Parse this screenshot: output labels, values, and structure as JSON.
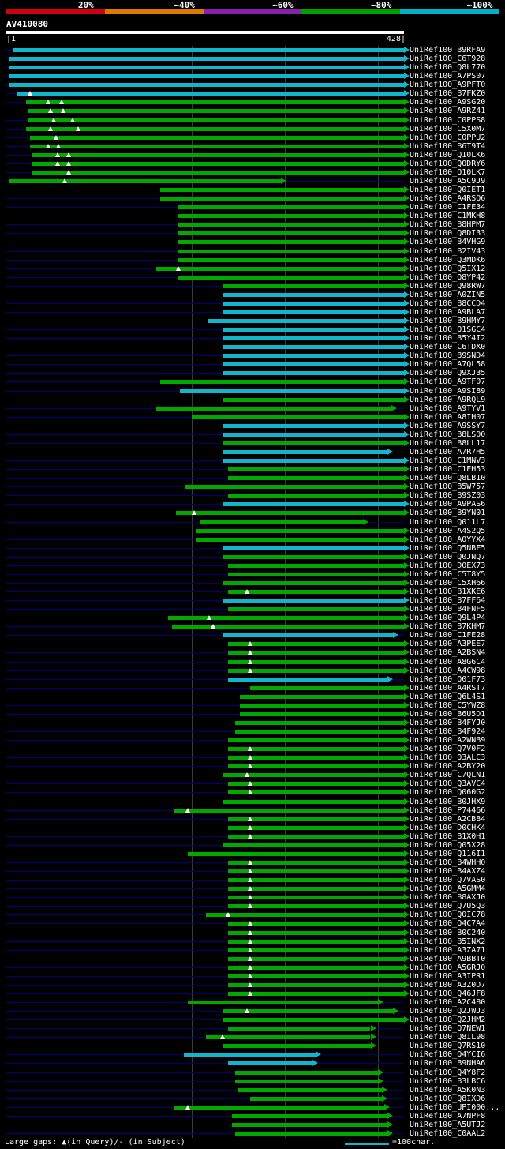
{
  "identity_key": {
    "segments": [
      {
        "label": "20%",
        "color": "#cc0012"
      },
      {
        "label": "~40%",
        "color": "#dd7700"
      },
      {
        "label": "~60%",
        "color": "#8a1fae"
      },
      {
        "label": "~80%",
        "color": "#00a000"
      },
      {
        "label": "~100%",
        "color": "#00b2c8"
      }
    ]
  },
  "query": {
    "name": "AV410080",
    "start_tick": "|1",
    "end_tick": "428|",
    "length": 428
  },
  "plot": {
    "bar_colors": {
      "green": "#00a800",
      "cyan": "#10b6cc"
    },
    "row_line_color": "#000078",
    "grid_color": "#3a3a3a",
    "gap_marker_color": "#ffffff",
    "query_bar_color": "#ffffff"
  },
  "footer": {
    "legend": "Large gaps: ▲(in Query)/- (in Subject)",
    "scale_label": "=100char.",
    "scale_color": "#10b6cc"
  },
  "chart_data": {
    "type": "bar",
    "subtype": "horizontal-alignment-spans",
    "title": "AV410080",
    "xlim": [
      1,
      428
    ],
    "gridlines_every": 100,
    "legend_bins": [
      "20%",
      "~40%",
      "~60%",
      "~80%",
      "~100%"
    ],
    "hits": [
      {
        "label": "UniRef100_B9RFA9",
        "color": "cyan",
        "start": 9,
        "end": 428,
        "gaps": []
      },
      {
        "label": "UniRef100_C6T928",
        "color": "cyan",
        "start": 4,
        "end": 428,
        "gaps": []
      },
      {
        "label": "UniRef100_Q8L770",
        "color": "cyan",
        "start": 4,
        "end": 428,
        "gaps": []
      },
      {
        "label": "UniRef100_A7PS07",
        "color": "cyan",
        "start": 4,
        "end": 428,
        "gaps": []
      },
      {
        "label": "UniRef100_A9PFT0",
        "color": "cyan",
        "start": 4,
        "end": 428,
        "gaps": []
      },
      {
        "label": "UniRef100_B7FKZ0",
        "color": "cyan",
        "start": 12,
        "end": 428,
        "gaps": [
          26
        ]
      },
      {
        "label": "UniRef100_A9SG20",
        "color": "green",
        "start": 22,
        "end": 428,
        "gaps": [
          46,
          60
        ]
      },
      {
        "label": "UniRef100_A9RZ41",
        "color": "green",
        "start": 24,
        "end": 428,
        "gaps": [
          48,
          62
        ]
      },
      {
        "label": "UniRef100_C0PPS8",
        "color": "green",
        "start": 24,
        "end": 428,
        "gaps": [
          52,
          72
        ]
      },
      {
        "label": "UniRef100_C5X0M7",
        "color": "green",
        "start": 22,
        "end": 428,
        "gaps": [
          48,
          78
        ]
      },
      {
        "label": "UniRef100_C0PPU2",
        "color": "green",
        "start": 26,
        "end": 428,
        "gaps": [
          54
        ]
      },
      {
        "label": "UniRef100_B6T9T4",
        "color": "green",
        "start": 26,
        "end": 428,
        "gaps": [
          46,
          57
        ]
      },
      {
        "label": "UniRef100_Q10LK6",
        "color": "green",
        "start": 28,
        "end": 428,
        "gaps": [
          56,
          68
        ]
      },
      {
        "label": "UniRef100_Q0DRY6",
        "color": "green",
        "start": 28,
        "end": 428,
        "gaps": [
          56,
          68
        ]
      },
      {
        "label": "UniRef100_Q10LK7",
        "color": "green",
        "start": 28,
        "end": 428,
        "gaps": [
          68
        ]
      },
      {
        "label": "UniRef100_A5C9J9",
        "color": "green",
        "start": 4,
        "end": 296,
        "gaps": [
          64
        ]
      },
      {
        "label": "UniRef100_Q0IET1",
        "color": "green",
        "start": 166,
        "end": 428,
        "gaps": []
      },
      {
        "label": "UniRef100_A4RSQ6",
        "color": "green",
        "start": 166,
        "end": 428,
        "gaps": []
      },
      {
        "label": "UniRef100_C1FE34",
        "color": "green",
        "start": 186,
        "end": 428,
        "gaps": []
      },
      {
        "label": "UniRef100_C1MKH8",
        "color": "green",
        "start": 186,
        "end": 428,
        "gaps": []
      },
      {
        "label": "UniRef100_B8HPM7",
        "color": "green",
        "start": 186,
        "end": 428,
        "gaps": []
      },
      {
        "label": "UniRef100_Q8DI33",
        "color": "green",
        "start": 186,
        "end": 428,
        "gaps": []
      },
      {
        "label": "UniRef100_B4VHG9",
        "color": "green",
        "start": 186,
        "end": 428,
        "gaps": []
      },
      {
        "label": "UniRef100_B2IV43",
        "color": "green",
        "start": 186,
        "end": 428,
        "gaps": []
      },
      {
        "label": "UniRef100_Q3MDK6",
        "color": "green",
        "start": 186,
        "end": 428,
        "gaps": []
      },
      {
        "label": "UniRef100_Q5IX12",
        "color": "green",
        "start": 162,
        "end": 428,
        "gaps": [
          186
        ]
      },
      {
        "label": "UniRef100_Q8YP42",
        "color": "green",
        "start": 186,
        "end": 428,
        "gaps": []
      },
      {
        "label": "UniRef100_Q98RW7",
        "color": "green",
        "start": 234,
        "end": 428,
        "gaps": []
      },
      {
        "label": "UniRef100_A0ZIN5",
        "color": "cyan",
        "start": 234,
        "end": 428,
        "gaps": []
      },
      {
        "label": "UniRef100_B8CCD4",
        "color": "cyan",
        "start": 234,
        "end": 428,
        "gaps": []
      },
      {
        "label": "UniRef100_A9BLA7",
        "color": "cyan",
        "start": 234,
        "end": 428,
        "gaps": []
      },
      {
        "label": "UniRef100_B9HMY7",
        "color": "cyan",
        "start": 217,
        "end": 428,
        "gaps": []
      },
      {
        "label": "UniRef100_Q1SGC4",
        "color": "cyan",
        "start": 234,
        "end": 428,
        "gaps": []
      },
      {
        "label": "UniRef100_B5Y4I2",
        "color": "cyan",
        "start": 234,
        "end": 428,
        "gaps": []
      },
      {
        "label": "UniRef100_C6TDX0",
        "color": "cyan",
        "start": 234,
        "end": 428,
        "gaps": []
      },
      {
        "label": "UniRef100_B9SND4",
        "color": "cyan",
        "start": 234,
        "end": 428,
        "gaps": []
      },
      {
        "label": "UniRef100_A7QL58",
        "color": "cyan",
        "start": 234,
        "end": 428,
        "gaps": []
      },
      {
        "label": "UniRef100_Q9XJ35",
        "color": "cyan",
        "start": 234,
        "end": 428,
        "gaps": []
      },
      {
        "label": "UniRef100_A9TF07",
        "color": "green",
        "start": 166,
        "end": 428,
        "gaps": []
      },
      {
        "label": "UniRef100_A9SI89",
        "color": "cyan",
        "start": 187,
        "end": 428,
        "gaps": []
      },
      {
        "label": "UniRef100_A9RQL9",
        "color": "green",
        "start": 234,
        "end": 428,
        "gaps": []
      },
      {
        "label": "UniRef100_A9TYV1",
        "color": "green",
        "start": 162,
        "end": 414,
        "gaps": []
      },
      {
        "label": "UniRef100_A8IH07",
        "color": "green",
        "start": 200,
        "end": 428,
        "gaps": []
      },
      {
        "label": "UniRef100_A9SSY7",
        "color": "cyan",
        "start": 234,
        "end": 428,
        "gaps": []
      },
      {
        "label": "UniRef100_B8LS00",
        "color": "cyan",
        "start": 234,
        "end": 428,
        "gaps": []
      },
      {
        "label": "UniRef100_B8LL17",
        "color": "green",
        "start": 234,
        "end": 428,
        "gaps": []
      },
      {
        "label": "UniRef100_A7R7H5",
        "color": "cyan",
        "start": 234,
        "end": 410,
        "gaps": []
      },
      {
        "label": "UniRef100_C1MNV3",
        "color": "cyan",
        "start": 234,
        "end": 428,
        "gaps": []
      },
      {
        "label": "UniRef100_C1EH53",
        "color": "green",
        "start": 239,
        "end": 428,
        "gaps": []
      },
      {
        "label": "UniRef100_Q8LB10",
        "color": "green",
        "start": 239,
        "end": 428,
        "gaps": []
      },
      {
        "label": "UniRef100_B5W757",
        "color": "green",
        "start": 193,
        "end": 428,
        "gaps": []
      },
      {
        "label": "UniRef100_B9SZ03",
        "color": "green",
        "start": 239,
        "end": 428,
        "gaps": []
      },
      {
        "label": "UniRef100_A9PAS6",
        "color": "cyan",
        "start": 234,
        "end": 428,
        "gaps": []
      },
      {
        "label": "UniRef100_B9YN01",
        "color": "green",
        "start": 183,
        "end": 428,
        "gaps": [
          203
        ]
      },
      {
        "label": "UniRef100_Q011L7",
        "color": "green",
        "start": 209,
        "end": 384,
        "gaps": []
      },
      {
        "label": "UniRef100_A4S2Q5",
        "color": "green",
        "start": 204,
        "end": 428,
        "gaps": []
      },
      {
        "label": "UniRef100_A0YYX4",
        "color": "green",
        "start": 204,
        "end": 428,
        "gaps": []
      },
      {
        "label": "UniRef100_Q5NBF5",
        "color": "cyan",
        "start": 234,
        "end": 428,
        "gaps": []
      },
      {
        "label": "UniRef100_Q0JNQ7",
        "color": "green",
        "start": 234,
        "end": 428,
        "gaps": []
      },
      {
        "label": "UniRef100_D0EX73",
        "color": "green",
        "start": 239,
        "end": 428,
        "gaps": []
      },
      {
        "label": "UniRef100_C5T8Y5",
        "color": "green",
        "start": 239,
        "end": 428,
        "gaps": []
      },
      {
        "label": "UniRef100_C5XH66",
        "color": "green",
        "start": 234,
        "end": 428,
        "gaps": []
      },
      {
        "label": "UniRef100_B1XKE6",
        "color": "green",
        "start": 239,
        "end": 428,
        "gaps": [
          259
        ]
      },
      {
        "label": "UniRef100_B7FF64",
        "color": "cyan",
        "start": 234,
        "end": 428,
        "gaps": []
      },
      {
        "label": "UniRef100_B4FNF5",
        "color": "green",
        "start": 239,
        "end": 428,
        "gaps": []
      },
      {
        "label": "UniRef100_Q9L4P4",
        "color": "green",
        "start": 175,
        "end": 428,
        "gaps": [
          219
        ]
      },
      {
        "label": "UniRef100_B7KHM7",
        "color": "green",
        "start": 179,
        "end": 428,
        "gaps": [
          223
        ]
      },
      {
        "label": "UniRef100_C1FE28",
        "color": "cyan",
        "start": 234,
        "end": 416,
        "gaps": []
      },
      {
        "label": "UniRef100_A3PEE7",
        "color": "green",
        "start": 239,
        "end": 428,
        "gaps": [
          263
        ]
      },
      {
        "label": "UniRef100_A2BSN4",
        "color": "green",
        "start": 239,
        "end": 428,
        "gaps": [
          263
        ]
      },
      {
        "label": "UniRef100_A8G6C4",
        "color": "green",
        "start": 239,
        "end": 428,
        "gaps": [
          263
        ]
      },
      {
        "label": "UniRef100_A4CW98",
        "color": "green",
        "start": 239,
        "end": 428,
        "gaps": [
          263
        ]
      },
      {
        "label": "UniRef100_Q01F73",
        "color": "cyan",
        "start": 239,
        "end": 410,
        "gaps": []
      },
      {
        "label": "UniRef100_A4RST7",
        "color": "green",
        "start": 263,
        "end": 428,
        "gaps": []
      },
      {
        "label": "UniRef100_Q6L4S1",
        "color": "green",
        "start": 252,
        "end": 428,
        "gaps": []
      },
      {
        "label": "UniRef100_C5YWZ8",
        "color": "green",
        "start": 252,
        "end": 428,
        "gaps": []
      },
      {
        "label": "UniRef100_B6U5D1",
        "color": "green",
        "start": 252,
        "end": 428,
        "gaps": []
      },
      {
        "label": "UniRef100_B4FYJ0",
        "color": "green",
        "start": 247,
        "end": 428,
        "gaps": []
      },
      {
        "label": "UniRef100_B4F924",
        "color": "green",
        "start": 247,
        "end": 428,
        "gaps": []
      },
      {
        "label": "UniRef100_A2WNB9",
        "color": "green",
        "start": 239,
        "end": 428,
        "gaps": []
      },
      {
        "label": "UniRef100_Q7V0F2",
        "color": "green",
        "start": 239,
        "end": 428,
        "gaps": [
          263
        ]
      },
      {
        "label": "UniRef100_Q3ALC3",
        "color": "green",
        "start": 239,
        "end": 428,
        "gaps": [
          263
        ]
      },
      {
        "label": "UniRef100_A2BY20",
        "color": "green",
        "start": 239,
        "end": 428,
        "gaps": [
          263
        ]
      },
      {
        "label": "UniRef100_C7QLN1",
        "color": "green",
        "start": 234,
        "end": 428,
        "gaps": [
          259
        ]
      },
      {
        "label": "UniRef100_Q3AVC4",
        "color": "green",
        "start": 239,
        "end": 428,
        "gaps": [
          263
        ]
      },
      {
        "label": "UniRef100_Q060G2",
        "color": "green",
        "start": 239,
        "end": 428,
        "gaps": [
          263
        ]
      },
      {
        "label": "UniRef100_B0JHX9",
        "color": "green",
        "start": 234,
        "end": 428,
        "gaps": []
      },
      {
        "label": "UniRef100_P74466",
        "color": "green",
        "start": 181,
        "end": 428,
        "gaps": [
          196
        ]
      },
      {
        "label": "UniRef100_A2CB84",
        "color": "green",
        "start": 239,
        "end": 428,
        "gaps": [
          263
        ]
      },
      {
        "label": "UniRef100_D0CHK4",
        "color": "green",
        "start": 239,
        "end": 428,
        "gaps": [
          263
        ]
      },
      {
        "label": "UniRef100_B1X0H1",
        "color": "green",
        "start": 239,
        "end": 428,
        "gaps": [
          263
        ]
      },
      {
        "label": "UniRef100_Q05X28",
        "color": "green",
        "start": 234,
        "end": 428,
        "gaps": []
      },
      {
        "label": "UniRef100_Q116I1",
        "color": "green",
        "start": 196,
        "end": 428,
        "gaps": []
      },
      {
        "label": "UniRef100_B4WHH0",
        "color": "green",
        "start": 239,
        "end": 428,
        "gaps": [
          263
        ]
      },
      {
        "label": "UniRef100_B4AXZ4",
        "color": "green",
        "start": 239,
        "end": 428,
        "gaps": [
          263
        ]
      },
      {
        "label": "UniRef100_Q7VAS0",
        "color": "green",
        "start": 239,
        "end": 428,
        "gaps": [
          263
        ]
      },
      {
        "label": "UniRef100_A5GMM4",
        "color": "green",
        "start": 239,
        "end": 428,
        "gaps": [
          263
        ]
      },
      {
        "label": "UniRef100_B8AXJ0",
        "color": "green",
        "start": 239,
        "end": 428,
        "gaps": [
          263
        ]
      },
      {
        "label": "UniRef100_Q7U5Q3",
        "color": "green",
        "start": 239,
        "end": 428,
        "gaps": [
          263
        ]
      },
      {
        "label": "UniRef100_Q0IC78",
        "color": "green",
        "start": 215,
        "end": 428,
        "gaps": [
          239
        ]
      },
      {
        "label": "UniRef100_Q4C7A4",
        "color": "green",
        "start": 239,
        "end": 428,
        "gaps": [
          263
        ]
      },
      {
        "label": "UniRef100_B0C240",
        "color": "green",
        "start": 239,
        "end": 428,
        "gaps": [
          263
        ]
      },
      {
        "label": "UniRef100_B5INX2",
        "color": "green",
        "start": 239,
        "end": 428,
        "gaps": [
          263
        ]
      },
      {
        "label": "UniRef100_A3ZA71",
        "color": "green",
        "start": 239,
        "end": 428,
        "gaps": [
          263
        ]
      },
      {
        "label": "UniRef100_A9BBT0",
        "color": "green",
        "start": 239,
        "end": 428,
        "gaps": [
          263
        ]
      },
      {
        "label": "UniRef100_A5GRJ0",
        "color": "green",
        "start": 239,
        "end": 428,
        "gaps": [
          263
        ]
      },
      {
        "label": "UniRef100_A3IPR1",
        "color": "green",
        "start": 239,
        "end": 428,
        "gaps": [
          263
        ]
      },
      {
        "label": "UniRef100_A3Z0D7",
        "color": "green",
        "start": 239,
        "end": 428,
        "gaps": [
          263
        ]
      },
      {
        "label": "UniRef100_Q46JF8",
        "color": "green",
        "start": 239,
        "end": 428,
        "gaps": [
          263
        ]
      },
      {
        "label": "UniRef100_A2C480",
        "color": "green",
        "start": 196,
        "end": 400,
        "gaps": []
      },
      {
        "label": "UniRef100_Q2JWJ3",
        "color": "green",
        "start": 234,
        "end": 416,
        "gaps": [
          259
        ]
      },
      {
        "label": "UniRef100_Q2JHM2",
        "color": "green",
        "start": 234,
        "end": 428,
        "gaps": []
      },
      {
        "label": "UniRef100_Q7NEW1",
        "color": "green",
        "start": 239,
        "end": 392,
        "gaps": []
      },
      {
        "label": "UniRef100_Q8IL98",
        "color": "green",
        "start": 215,
        "end": 392,
        "gaps": [
          233
        ]
      },
      {
        "label": "UniRef100_Q7RS10",
        "color": "green",
        "start": 234,
        "end": 392,
        "gaps": []
      },
      {
        "label": "UniRef100_Q4YCI6",
        "color": "cyan",
        "start": 192,
        "end": 333,
        "gaps": []
      },
      {
        "label": "UniRef100_B9NHA6",
        "color": "cyan",
        "start": 239,
        "end": 330,
        "gaps": []
      },
      {
        "label": "UniRef100_Q4Y8F2",
        "color": "green",
        "start": 247,
        "end": 400,
        "gaps": []
      },
      {
        "label": "UniRef100_B3LBC6",
        "color": "green",
        "start": 247,
        "end": 400,
        "gaps": []
      },
      {
        "label": "UniRef100_A5K0N3",
        "color": "green",
        "start": 250,
        "end": 404,
        "gaps": []
      },
      {
        "label": "UniRef100_Q8IXD6",
        "color": "green",
        "start": 263,
        "end": 404,
        "gaps": []
      },
      {
        "label": "UniRef100_UPI000...",
        "color": "green",
        "start": 181,
        "end": 407,
        "gaps": [
          196
        ]
      },
      {
        "label": "UniRef100_A7NPF8",
        "color": "green",
        "start": 243,
        "end": 410,
        "gaps": []
      },
      {
        "label": "UniRef100_A5UTJ2",
        "color": "green",
        "start": 243,
        "end": 410,
        "gaps": []
      },
      {
        "label": "UniRef100_C0AAL2",
        "color": "green",
        "start": 247,
        "end": 410,
        "gaps": []
      }
    ]
  }
}
